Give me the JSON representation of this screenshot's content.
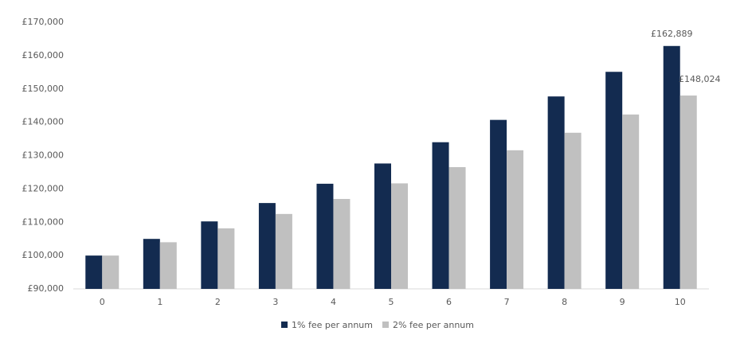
{
  "chart_data": {
    "type": "bar",
    "categories": [
      "0",
      "1",
      "2",
      "3",
      "4",
      "5",
      "6",
      "7",
      "8",
      "9",
      "10"
    ],
    "series": [
      {
        "name": "1% fee per annum",
        "color": "#132b50",
        "values": [
          100000,
          105000,
          110250,
          115763,
          121551,
          127628,
          134010,
          140710,
          147746,
          155133,
          162889
        ],
        "value_labels": [
          null,
          null,
          null,
          null,
          null,
          null,
          null,
          null,
          null,
          null,
          "£162,889"
        ]
      },
      {
        "name": "2% fee per annum",
        "color": "#c0c0c0",
        "values": [
          100000,
          104000,
          108160,
          112486,
          116986,
          121665,
          126532,
          131593,
          136857,
          142331,
          148024
        ],
        "value_labels": [
          null,
          null,
          null,
          null,
          null,
          null,
          null,
          null,
          null,
          null,
          "£148,024"
        ]
      }
    ],
    "ylim": [
      90000,
      170000
    ],
    "yticks": [
      {
        "value": 90000,
        "label": "£90,000"
      },
      {
        "value": 100000,
        "label": "£100,000"
      },
      {
        "value": 110000,
        "label": "£110,000"
      },
      {
        "value": 120000,
        "label": "£120,000"
      },
      {
        "value": 130000,
        "label": "£130,000"
      },
      {
        "value": 140000,
        "label": "£140,000"
      },
      {
        "value": 150000,
        "label": "£150,000"
      },
      {
        "value": 160000,
        "label": "£160,000"
      },
      {
        "value": 170000,
        "label": "£170,000"
      }
    ],
    "grid": false,
    "legend": "bottom"
  }
}
